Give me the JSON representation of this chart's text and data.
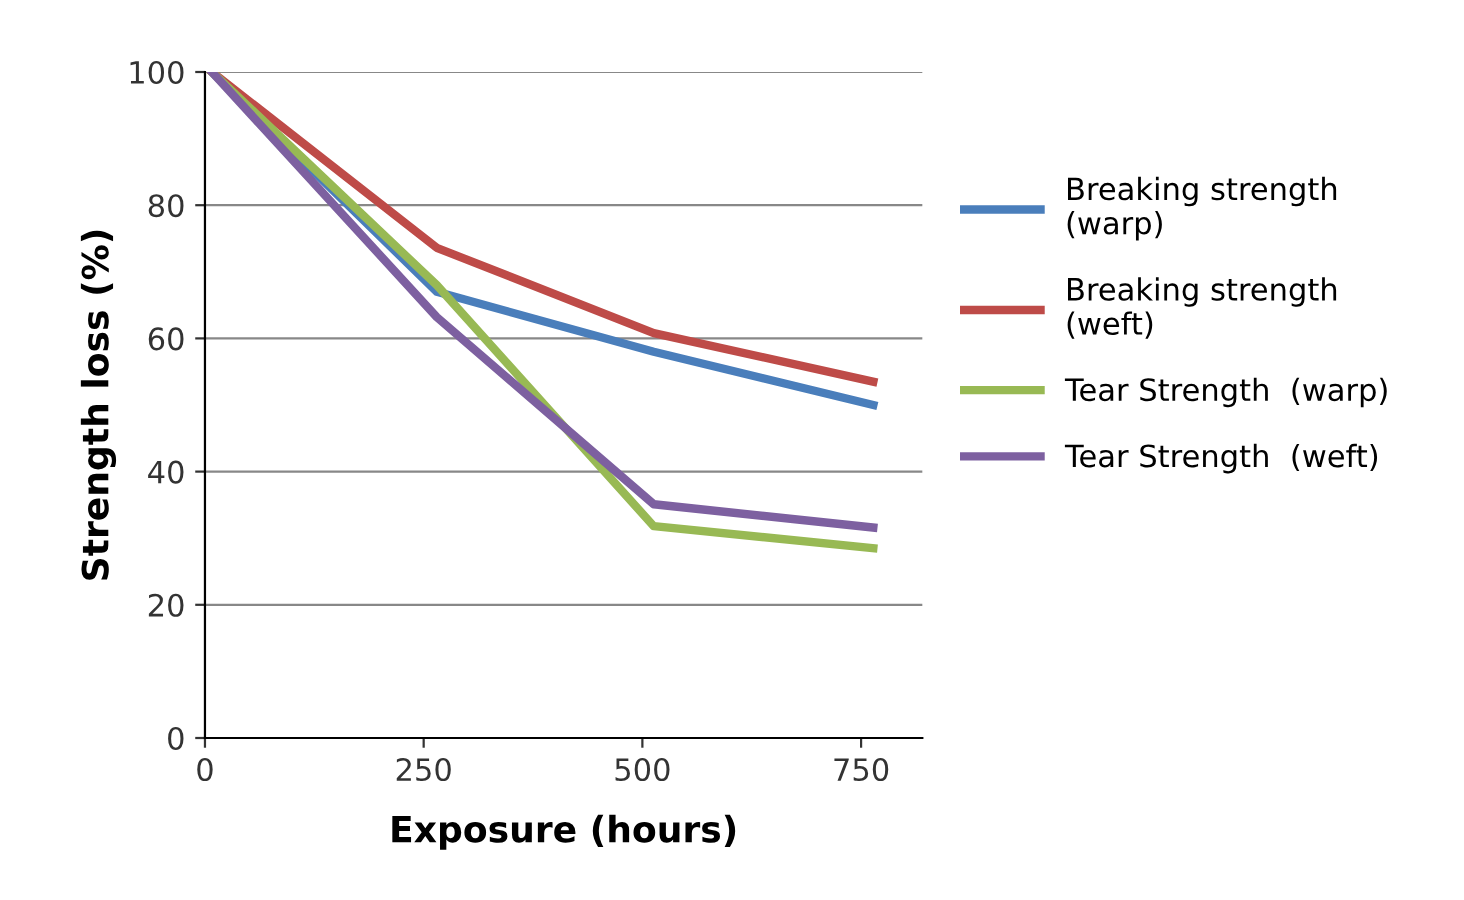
{
  "chart_data": {
    "type": "line",
    "xlabel": "Exposure (hours)",
    "ylabel": "Strength loss (%)",
    "xlim": [
      0,
      820
    ],
    "xticks": [
      0,
      250,
      500,
      750
    ],
    "ylim": [
      0,
      100
    ],
    "yticks": [
      0,
      20,
      40,
      60,
      80,
      100
    ],
    "grid": "y",
    "legend": "right",
    "marker": "none",
    "line_style": "solid",
    "series": [
      {
        "name": "Breaking strength\n(warp)",
        "color": "#4a7ebb",
        "x": [
          8,
          265,
          513,
          764
        ],
        "values": [
          100,
          67,
          58,
          50
        ]
      },
      {
        "name": "Breaking strength\n(weft)",
        "color": "#be4b48",
        "x": [
          8,
          265,
          513,
          764
        ],
        "values": [
          100,
          73.6,
          60.8,
          53.5
        ]
      },
      {
        "name": "Tear Strength  (warp)",
        "color": "#98b954",
        "x": [
          8,
          265,
          513,
          764
        ],
        "values": [
          100,
          68,
          31.8,
          28.5
        ]
      },
      {
        "name": "Tear Strength  (weft)",
        "color": "#7d60a0",
        "x": [
          8,
          265,
          513,
          764
        ],
        "values": [
          100,
          63.2,
          35.1,
          31.6
        ]
      }
    ]
  }
}
